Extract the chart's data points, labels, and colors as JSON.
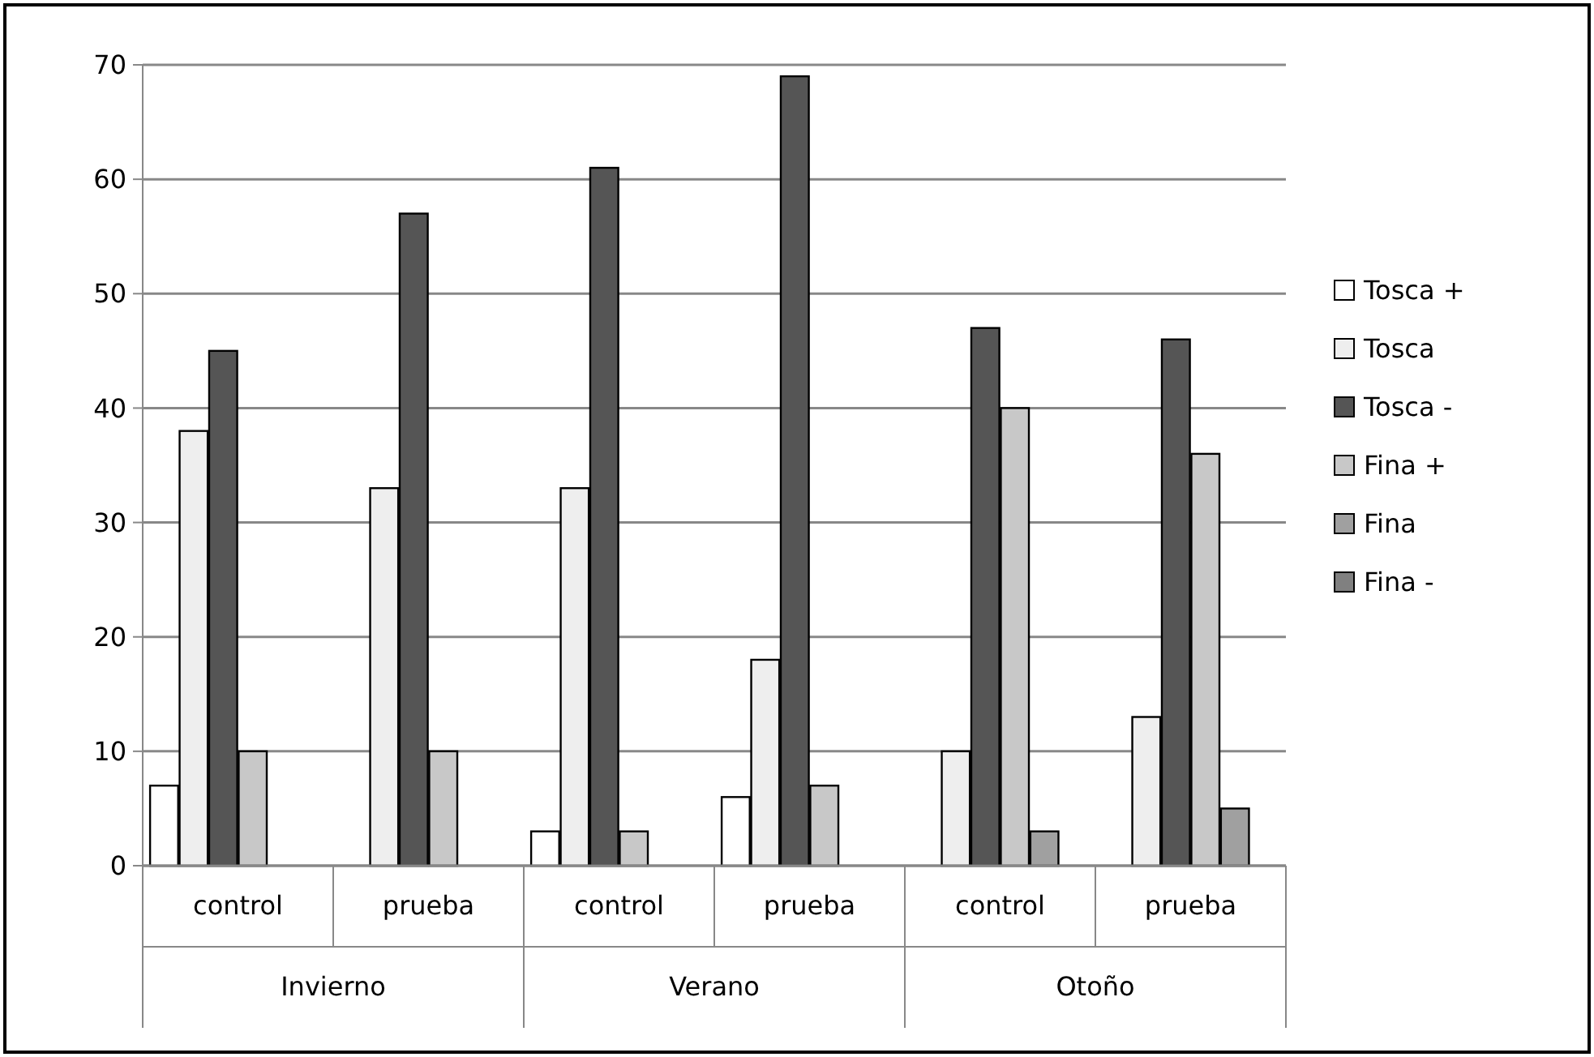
{
  "chart_data": {
    "type": "bar",
    "categories": [
      "control",
      "prueba",
      "control",
      "prueba",
      "control",
      "prueba"
    ],
    "series": [
      {
        "name": "Tosca +",
        "color": "#ffffff",
        "values": [
          7,
          0,
          3,
          6,
          0,
          0
        ]
      },
      {
        "name": "Tosca",
        "color": "#eeeeee",
        "values": [
          38,
          33,
          33,
          18,
          10,
          13
        ]
      },
      {
        "name": "Tosca -",
        "color": "#555555",
        "values": [
          45,
          57,
          61,
          69,
          47,
          46
        ]
      },
      {
        "name": "Fina +",
        "color": "#c8c8c8",
        "values": [
          10,
          10,
          3,
          7,
          40,
          36
        ]
      },
      {
        "name": "Fina",
        "color": "#a0a0a0",
        "values": [
          0,
          0,
          0,
          0,
          3,
          5
        ]
      },
      {
        "name": "Fina -",
        "color": "#808080",
        "values": [
          0,
          0,
          0,
          0,
          0,
          0
        ]
      }
    ],
    "annotations": [
      "Invierno",
      "Verano",
      "Otoño"
    ],
    "ylim": [
      0,
      70
    ],
    "yticks": [
      0,
      10,
      20,
      30,
      40,
      50,
      60,
      70
    ],
    "grid": "y",
    "legend": "right"
  }
}
